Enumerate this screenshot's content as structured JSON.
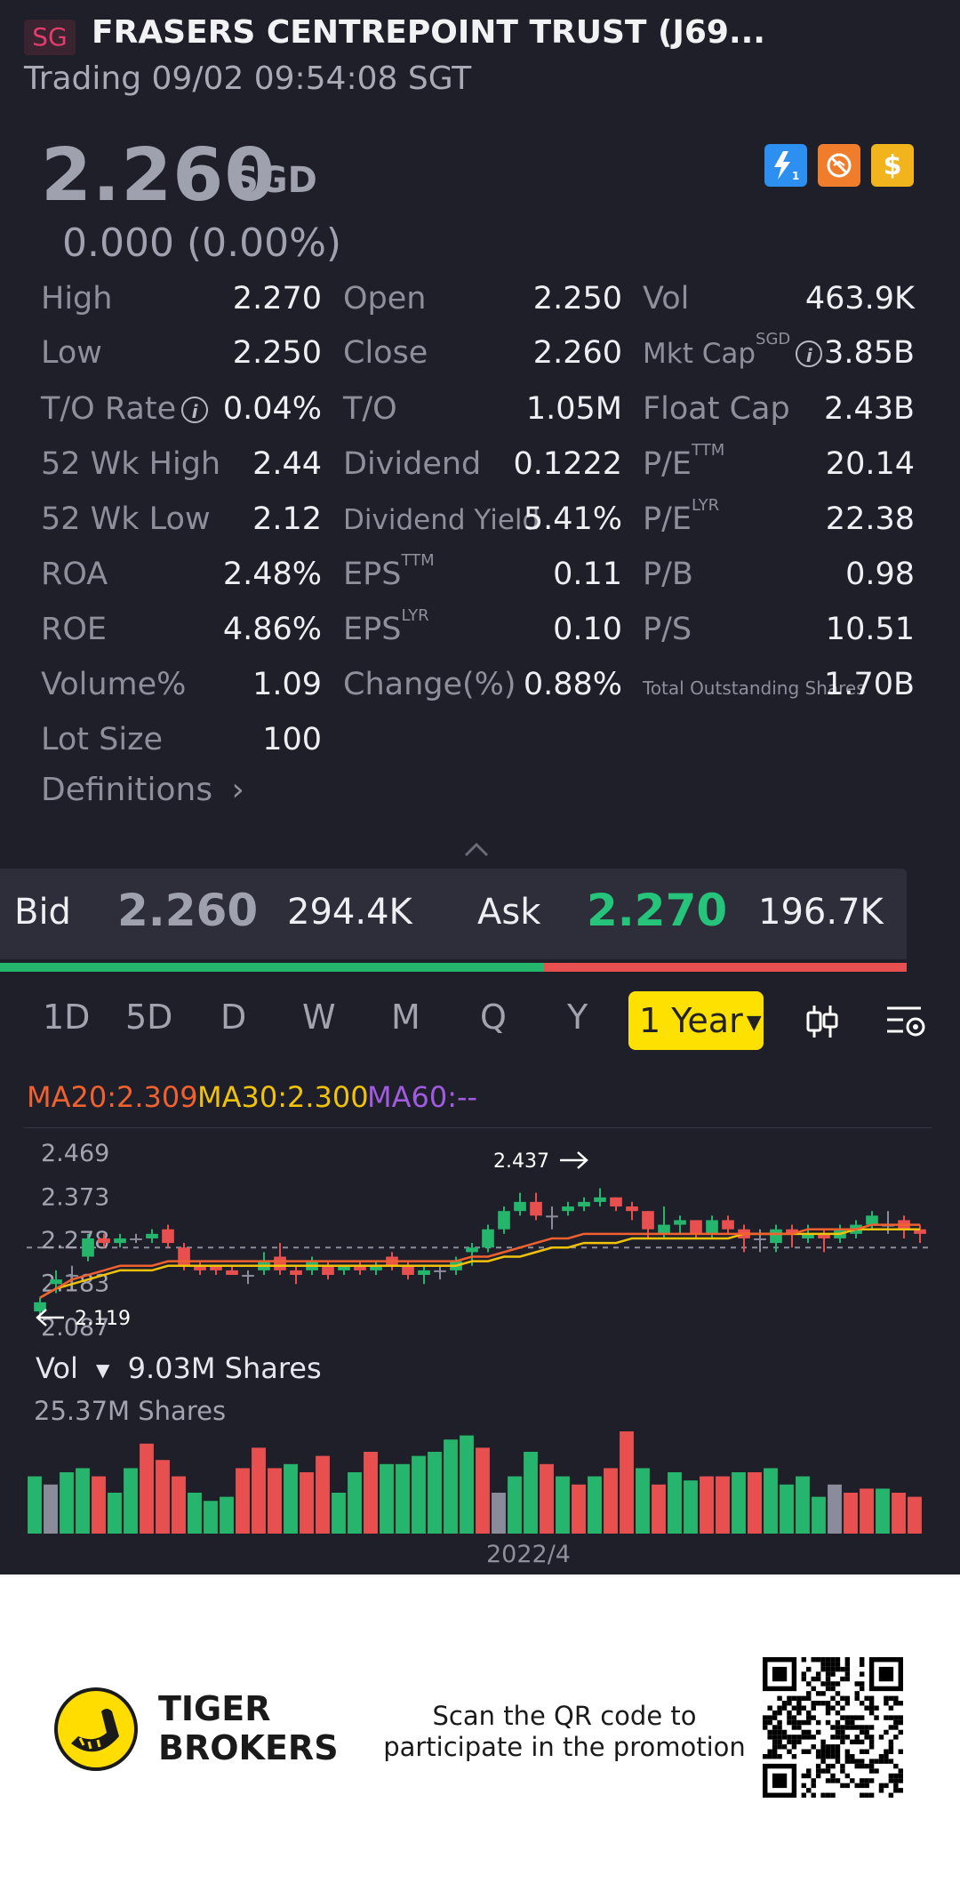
{
  "header": {
    "region": "SG",
    "name": "FRASERS CENTREPOINT TRUST (J69...",
    "status": "Trading 09/02 09:54:08 SGT"
  },
  "quote": {
    "price": "2.260",
    "currency": "SGD",
    "change": "0.000 (0.00%)",
    "icons": [
      "lightning-1-icon",
      "no-trade-icon",
      "dollar-icon"
    ]
  },
  "stats": {
    "high_label": "High",
    "high": "2.270",
    "open_label": "Open",
    "open": "2.250",
    "vol_label": "Vol",
    "vol": "463.9K",
    "low_label": "Low",
    "low": "2.250",
    "close_label": "Close",
    "close": "2.260",
    "mktcap_label": "Mkt Cap",
    "mktcap_sup": "SGD",
    "mktcap": "3.85B",
    "to_rate_label": "T/O Rate",
    "to_rate": "0.04%",
    "to_label": "T/O",
    "to": "1.05M",
    "floatcap_label": "Float Cap",
    "floatcap": "2.43B",
    "wk52_high_label": "52 Wk High",
    "wk52_high": "2.44",
    "dividend_label": "Dividend",
    "dividend": "0.1222",
    "pe_ttm_label": "P/E",
    "pe_ttm_sup": "TTM",
    "pe_ttm": "20.14",
    "wk52_low_label": "52 Wk Low",
    "wk52_low": "2.12",
    "div_yield_label": "Dividend Yield",
    "div_yield": "5.41%",
    "pe_lyr_label": "P/E",
    "pe_lyr_sup": "LYR",
    "pe_lyr": "22.38",
    "roa_label": "ROA",
    "roa": "2.48%",
    "eps_ttm_label": "EPS",
    "eps_ttm_sup": "TTM",
    "eps_ttm": "0.11",
    "pb_label": "P/B",
    "pb": "0.98",
    "roe_label": "ROE",
    "roe": "4.86%",
    "eps_lyr_label": "EPS",
    "eps_lyr_sup": "LYR",
    "eps_lyr": "0.10",
    "ps_label": "P/S",
    "ps": "10.51",
    "volpct_label": "Volume%",
    "volpct": "1.09",
    "changepct_label": "Change(%)",
    "changepct": "0.88%",
    "shares_label": "Total Outstanding Shares",
    "shares": "1.70B",
    "lot_label": "Lot Size",
    "lot": "100",
    "definitions": "Definitions"
  },
  "bidask": {
    "bid_label": "Bid",
    "bid": "2.260",
    "bid_size": "294.4K",
    "ask_label": "Ask",
    "ask": "2.270",
    "ask_size": "196.7K",
    "bid_ratio": 0.6
  },
  "tabs": [
    "1D",
    "5D",
    "D",
    "W",
    "M",
    "Q",
    "Y"
  ],
  "active_tab": "1 Year",
  "ma": {
    "ma20": "MA20:2.309",
    "ma30": "MA30:2.300",
    "ma60": "MA60:--"
  },
  "chart_data": {
    "type": "candlestick",
    "y_ticks": [
      "2.469",
      "2.373",
      "2.278",
      "2.183",
      "2.087"
    ],
    "ylim": [
      2.087,
      2.469
    ],
    "reference_line": 2.26,
    "high_label": "2.437",
    "low_label": "2.119",
    "x_label": "2022/4",
    "volume_selector": "Vol",
    "volume_current": "9.03M Shares",
    "volume_max": "25.37M Shares",
    "colors": {
      "up": "#25b56c",
      "down": "#e8504f",
      "flat": "#8a8c9c",
      "ma20": "#f0612f",
      "ma30": "#f0c20a"
    },
    "candles": [
      {
        "o": 2.12,
        "c": 2.14,
        "h": 2.15,
        "l": 2.11
      },
      {
        "o": 2.18,
        "c": 2.19,
        "h": 2.21,
        "l": 2.16
      },
      {
        "o": 2.2,
        "c": 2.2,
        "h": 2.22,
        "l": 2.18
      },
      {
        "o": 2.24,
        "c": 2.28,
        "h": 2.29,
        "l": 2.23
      },
      {
        "o": 2.28,
        "c": 2.27,
        "h": 2.29,
        "l": 2.26
      },
      {
        "o": 2.27,
        "c": 2.28,
        "h": 2.29,
        "l": 2.26
      },
      {
        "o": 2.28,
        "c": 2.28,
        "h": 2.29,
        "l": 2.27
      },
      {
        "o": 2.28,
        "c": 2.29,
        "h": 2.3,
        "l": 2.27
      },
      {
        "o": 2.3,
        "c": 2.27,
        "h": 2.31,
        "l": 2.26
      },
      {
        "o": 2.26,
        "c": 2.22,
        "h": 2.27,
        "l": 2.21
      },
      {
        "o": 2.22,
        "c": 2.21,
        "h": 2.23,
        "l": 2.2
      },
      {
        "o": 2.22,
        "c": 2.21,
        "h": 2.22,
        "l": 2.2
      },
      {
        "o": 2.21,
        "c": 2.2,
        "h": 2.22,
        "l": 2.2
      },
      {
        "o": 2.2,
        "c": 2.2,
        "h": 2.21,
        "l": 2.18
      },
      {
        "o": 2.21,
        "c": 2.23,
        "h": 2.25,
        "l": 2.2
      },
      {
        "o": 2.24,
        "c": 2.21,
        "h": 2.27,
        "l": 2.2
      },
      {
        "o": 2.21,
        "c": 2.2,
        "h": 2.22,
        "l": 2.18
      },
      {
        "o": 2.21,
        "c": 2.23,
        "h": 2.24,
        "l": 2.2
      },
      {
        "o": 2.22,
        "c": 2.2,
        "h": 2.23,
        "l": 2.19
      },
      {
        "o": 2.21,
        "c": 2.22,
        "h": 2.22,
        "l": 2.2
      },
      {
        "o": 2.22,
        "c": 2.21,
        "h": 2.23,
        "l": 2.2
      },
      {
        "o": 2.21,
        "c": 2.22,
        "h": 2.23,
        "l": 2.2
      },
      {
        "o": 2.24,
        "c": 2.22,
        "h": 2.25,
        "l": 2.21
      },
      {
        "o": 2.22,
        "c": 2.2,
        "h": 2.23,
        "l": 2.19
      },
      {
        "o": 2.2,
        "c": 2.21,
        "h": 2.22,
        "l": 2.18
      },
      {
        "o": 2.21,
        "c": 2.21,
        "h": 2.22,
        "l": 2.19
      },
      {
        "o": 2.21,
        "c": 2.23,
        "h": 2.24,
        "l": 2.2
      },
      {
        "o": 2.25,
        "c": 2.26,
        "h": 2.27,
        "l": 2.22
      },
      {
        "o": 2.26,
        "c": 2.3,
        "h": 2.31,
        "l": 2.25
      },
      {
        "o": 2.3,
        "c": 2.34,
        "h": 2.35,
        "l": 2.29
      },
      {
        "o": 2.34,
        "c": 2.36,
        "h": 2.38,
        "l": 2.33
      },
      {
        "o": 2.36,
        "c": 2.33,
        "h": 2.38,
        "l": 2.32
      },
      {
        "o": 2.33,
        "c": 2.33,
        "h": 2.35,
        "l": 2.3
      },
      {
        "o": 2.34,
        "c": 2.35,
        "h": 2.36,
        "l": 2.33
      },
      {
        "o": 2.35,
        "c": 2.36,
        "h": 2.37,
        "l": 2.34
      },
      {
        "o": 2.36,
        "c": 2.37,
        "h": 2.39,
        "l": 2.35
      },
      {
        "o": 2.37,
        "c": 2.35,
        "h": 2.37,
        "l": 2.34
      },
      {
        "o": 2.35,
        "c": 2.34,
        "h": 2.36,
        "l": 2.32
      },
      {
        "o": 2.34,
        "c": 2.3,
        "h": 2.34,
        "l": 2.28
      },
      {
        "o": 2.29,
        "c": 2.31,
        "h": 2.35,
        "l": 2.28
      },
      {
        "o": 2.31,
        "c": 2.32,
        "h": 2.33,
        "l": 2.29
      },
      {
        "o": 2.32,
        "c": 2.29,
        "h": 2.32,
        "l": 2.28
      },
      {
        "o": 2.29,
        "c": 2.32,
        "h": 2.33,
        "l": 2.28
      },
      {
        "o": 2.32,
        "c": 2.3,
        "h": 2.33,
        "l": 2.29
      },
      {
        "o": 2.3,
        "c": 2.28,
        "h": 2.31,
        "l": 2.25
      },
      {
        "o": 2.28,
        "c": 2.28,
        "h": 2.3,
        "l": 2.25
      },
      {
        "o": 2.27,
        "c": 2.3,
        "h": 2.31,
        "l": 2.25
      },
      {
        "o": 2.3,
        "c": 2.29,
        "h": 2.31,
        "l": 2.26
      },
      {
        "o": 2.28,
        "c": 2.29,
        "h": 2.31,
        "l": 2.27
      },
      {
        "o": 2.29,
        "c": 2.28,
        "h": 2.3,
        "l": 2.25
      },
      {
        "o": 2.28,
        "c": 2.3,
        "h": 2.31,
        "l": 2.27
      },
      {
        "o": 2.29,
        "c": 2.31,
        "h": 2.32,
        "l": 2.28
      },
      {
        "o": 2.31,
        "c": 2.33,
        "h": 2.34,
        "l": 2.3
      },
      {
        "o": 2.31,
        "c": 2.31,
        "h": 2.34,
        "l": 2.29
      },
      {
        "o": 2.32,
        "c": 2.3,
        "h": 2.33,
        "l": 2.28
      },
      {
        "o": 2.3,
        "c": 2.29,
        "h": 2.31,
        "l": 2.27
      }
    ],
    "ma20": [
      2.15,
      2.17,
      2.19,
      2.2,
      2.21,
      2.22,
      2.22,
      2.22,
      2.23,
      2.23,
      2.23,
      2.23,
      2.23,
      2.23,
      2.23,
      2.23,
      2.23,
      2.23,
      2.23,
      2.23,
      2.23,
      2.23,
      2.23,
      2.23,
      2.23,
      2.23,
      2.23,
      2.24,
      2.24,
      2.25,
      2.26,
      2.27,
      2.28,
      2.28,
      2.29,
      2.29,
      2.29,
      2.29,
      2.29,
      2.29,
      2.29,
      2.29,
      2.29,
      2.29,
      2.29,
      2.29,
      2.29,
      2.29,
      2.3,
      2.3,
      2.3,
      2.3,
      2.31,
      2.31,
      2.31,
      2.31
    ],
    "ma30": [
      2.15,
      2.17,
      2.18,
      2.19,
      2.2,
      2.21,
      2.21,
      2.21,
      2.22,
      2.22,
      2.22,
      2.22,
      2.22,
      2.22,
      2.22,
      2.22,
      2.22,
      2.22,
      2.22,
      2.22,
      2.22,
      2.22,
      2.22,
      2.22,
      2.22,
      2.22,
      2.22,
      2.23,
      2.23,
      2.24,
      2.24,
      2.25,
      2.26,
      2.26,
      2.27,
      2.27,
      2.27,
      2.28,
      2.28,
      2.28,
      2.28,
      2.28,
      2.28,
      2.28,
      2.29,
      2.29,
      2.29,
      2.29,
      2.29,
      2.29,
      2.29,
      2.3,
      2.3,
      2.3,
      2.3,
      2.3
    ],
    "volumes": [
      14,
      12,
      15,
      16,
      14,
      10,
      16,
      22,
      18,
      14,
      10,
      8,
      9,
      16,
      21,
      16,
      17,
      15,
      19,
      10,
      15,
      20,
      17,
      17,
      19,
      20,
      23,
      24,
      21,
      10,
      14,
      20,
      17,
      14,
      12,
      14,
      16,
      25,
      16,
      12,
      15,
      13,
      14,
      14,
      15,
      15,
      16,
      12,
      14,
      9,
      12,
      10,
      11,
      11,
      10,
      9
    ],
    "vol_colors": [
      "up",
      "flat",
      "up",
      "up",
      "down",
      "up",
      "up",
      "down",
      "down",
      "down",
      "up",
      "up",
      "up",
      "down",
      "down",
      "down",
      "up",
      "down",
      "down",
      "up",
      "up",
      "down",
      "up",
      "up",
      "up",
      "up",
      "up",
      "up",
      "down",
      "flat",
      "up",
      "up",
      "down",
      "up",
      "down",
      "up",
      "down",
      "down",
      "up",
      "down",
      "up",
      "up",
      "down",
      "down",
      "up",
      "down",
      "up",
      "up",
      "up",
      "up",
      "flat",
      "down",
      "down",
      "up",
      "down",
      "down"
    ]
  },
  "footer": {
    "brand_line1": "TIGER",
    "brand_line2": "BROKERS",
    "promo_line1": "Scan the QR code to",
    "promo_line2": "participate in the promotion"
  }
}
